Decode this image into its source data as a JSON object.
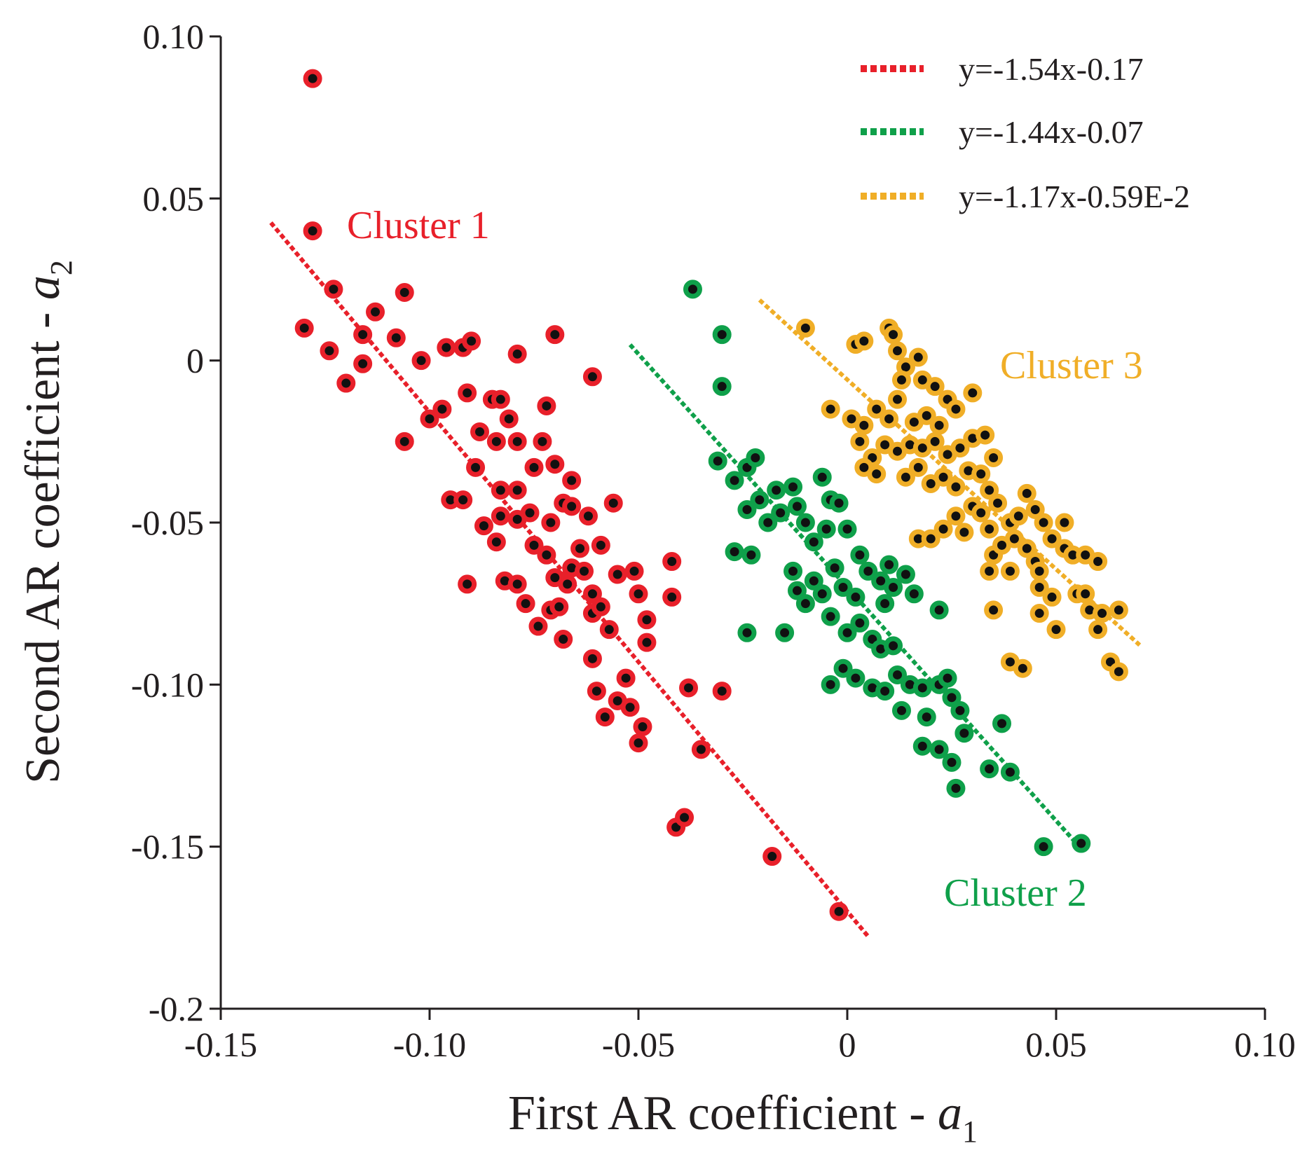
{
  "chart_data": {
    "type": "scatter",
    "title": "",
    "xlabel": "First AR coefficient - ",
    "xlabel_var": "a",
    "xlabel_sub": "1",
    "ylabel": "Second AR coefficient - ",
    "ylabel_var": "a",
    "ylabel_sub": "2",
    "xlim": [
      -0.15,
      0.1
    ],
    "ylim": [
      -0.2,
      0.1
    ],
    "xticks": [
      -0.15,
      -0.1,
      -0.05,
      0,
      0.05,
      0.1
    ],
    "xtick_labels": [
      "-0.15",
      "-0.10",
      "-0.05",
      "0",
      "0.05",
      "0.10"
    ],
    "yticks": [
      -0.2,
      -0.15,
      -0.1,
      -0.05,
      0,
      0.05,
      0.1
    ],
    "ytick_labels": [
      "-0.2",
      "-0.15",
      "-0.10",
      "-0.05",
      "0",
      "0.05",
      "0.10"
    ],
    "grid": false,
    "legend_position": "top-right",
    "series": [
      {
        "name": "Cluster 1",
        "color": "#e8202a",
        "label_color": "#e8202a",
        "fit_label": "y=-1.54x-0.17",
        "fit": {
          "slope": -1.54,
          "intercept": -0.17,
          "x_range": [
            -0.138,
            0.005
          ]
        },
        "points": [
          [
            -0.128,
            0.087
          ],
          [
            -0.128,
            0.04
          ],
          [
            -0.123,
            0.022
          ],
          [
            -0.13,
            0.01
          ],
          [
            -0.124,
            0.003
          ],
          [
            -0.12,
            -0.007
          ],
          [
            -0.116,
            0.008
          ],
          [
            -0.113,
            0.015
          ],
          [
            -0.116,
            -0.001
          ],
          [
            -0.108,
            0.007
          ],
          [
            -0.106,
            0.021
          ],
          [
            -0.102,
            0.0
          ],
          [
            -0.106,
            -0.025
          ],
          [
            -0.1,
            -0.018
          ],
          [
            -0.097,
            -0.015
          ],
          [
            -0.096,
            0.004
          ],
          [
            -0.092,
            0.004
          ],
          [
            -0.09,
            0.006
          ],
          [
            -0.079,
            0.002
          ],
          [
            -0.07,
            0.008
          ],
          [
            -0.061,
            -0.005
          ],
          [
            -0.091,
            -0.01
          ],
          [
            -0.085,
            -0.012
          ],
          [
            -0.083,
            -0.012
          ],
          [
            -0.081,
            -0.018
          ],
          [
            -0.088,
            -0.022
          ],
          [
            -0.084,
            -0.025
          ],
          [
            -0.079,
            -0.025
          ],
          [
            -0.073,
            -0.025
          ],
          [
            -0.072,
            -0.014
          ],
          [
            -0.089,
            -0.033
          ],
          [
            -0.075,
            -0.033
          ],
          [
            -0.07,
            -0.032
          ],
          [
            -0.083,
            -0.04
          ],
          [
            -0.079,
            -0.04
          ],
          [
            -0.076,
            -0.047
          ],
          [
            -0.068,
            -0.044
          ],
          [
            -0.066,
            -0.037
          ],
          [
            -0.066,
            -0.045
          ],
          [
            -0.062,
            -0.048
          ],
          [
            -0.056,
            -0.044
          ],
          [
            -0.095,
            -0.043
          ],
          [
            -0.092,
            -0.043
          ],
          [
            -0.087,
            -0.051
          ],
          [
            -0.084,
            -0.056
          ],
          [
            -0.083,
            -0.048
          ],
          [
            -0.079,
            -0.049
          ],
          [
            -0.075,
            -0.057
          ],
          [
            -0.071,
            -0.05
          ],
          [
            -0.072,
            -0.06
          ],
          [
            -0.064,
            -0.058
          ],
          [
            -0.059,
            -0.057
          ],
          [
            -0.091,
            -0.069
          ],
          [
            -0.082,
            -0.068
          ],
          [
            -0.079,
            -0.069
          ],
          [
            -0.077,
            -0.075
          ],
          [
            -0.074,
            -0.082
          ],
          [
            -0.071,
            -0.077
          ],
          [
            -0.069,
            -0.076
          ],
          [
            -0.07,
            -0.067
          ],
          [
            -0.067,
            -0.069
          ],
          [
            -0.066,
            -0.064
          ],
          [
            -0.063,
            -0.065
          ],
          [
            -0.061,
            -0.072
          ],
          [
            -0.061,
            -0.078
          ],
          [
            -0.059,
            -0.076
          ],
          [
            -0.057,
            -0.083
          ],
          [
            -0.055,
            -0.066
          ],
          [
            -0.051,
            -0.065
          ],
          [
            -0.05,
            -0.072
          ],
          [
            -0.048,
            -0.08
          ],
          [
            -0.048,
            -0.087
          ],
          [
            -0.042,
            -0.062
          ],
          [
            -0.042,
            -0.073
          ],
          [
            -0.068,
            -0.086
          ],
          [
            -0.061,
            -0.092
          ],
          [
            -0.06,
            -0.102
          ],
          [
            -0.058,
            -0.11
          ],
          [
            -0.055,
            -0.105
          ],
          [
            -0.053,
            -0.098
          ],
          [
            -0.052,
            -0.107
          ],
          [
            -0.05,
            -0.118
          ],
          [
            -0.049,
            -0.113
          ],
          [
            -0.038,
            -0.101
          ],
          [
            -0.03,
            -0.102
          ],
          [
            -0.035,
            -0.12
          ],
          [
            -0.041,
            -0.144
          ],
          [
            -0.039,
            -0.141
          ],
          [
            -0.018,
            -0.153
          ],
          [
            -0.002,
            -0.17
          ]
        ]
      },
      {
        "name": "Cluster 2",
        "color": "#0fa04a",
        "label_color": "#0fa04a",
        "fit_label": "y=-1.44x-0.07",
        "fit": {
          "slope": -1.44,
          "intercept": -0.07,
          "x_range": [
            -0.052,
            0.056
          ]
        },
        "points": [
          [
            -0.037,
            0.022
          ],
          [
            -0.03,
            0.008
          ],
          [
            -0.03,
            -0.008
          ],
          [
            -0.031,
            -0.031
          ],
          [
            -0.024,
            -0.033
          ],
          [
            -0.022,
            -0.03
          ],
          [
            -0.027,
            -0.037
          ],
          [
            -0.024,
            -0.046
          ],
          [
            -0.021,
            -0.043
          ],
          [
            -0.017,
            -0.04
          ],
          [
            -0.013,
            -0.039
          ],
          [
            -0.019,
            -0.05
          ],
          [
            -0.016,
            -0.047
          ],
          [
            -0.012,
            -0.045
          ],
          [
            -0.01,
            -0.05
          ],
          [
            -0.006,
            -0.036
          ],
          [
            -0.004,
            -0.043
          ],
          [
            -0.002,
            -0.044
          ],
          [
            -0.005,
            -0.052
          ],
          [
            -0.008,
            -0.056
          ],
          [
            0.0,
            -0.052
          ],
          [
            -0.027,
            -0.059
          ],
          [
            -0.023,
            -0.06
          ],
          [
            -0.024,
            -0.084
          ],
          [
            -0.015,
            -0.084
          ],
          [
            -0.013,
            -0.065
          ],
          [
            -0.012,
            -0.071
          ],
          [
            -0.01,
            -0.075
          ],
          [
            -0.008,
            -0.068
          ],
          [
            -0.006,
            -0.072
          ],
          [
            -0.003,
            -0.064
          ],
          [
            -0.001,
            -0.07
          ],
          [
            0.002,
            -0.073
          ],
          [
            0.003,
            -0.06
          ],
          [
            0.005,
            -0.065
          ],
          [
            0.008,
            -0.068
          ],
          [
            0.01,
            -0.063
          ],
          [
            0.011,
            -0.07
          ],
          [
            0.014,
            -0.066
          ],
          [
            0.009,
            -0.075
          ],
          [
            0.016,
            -0.072
          ],
          [
            0.022,
            -0.077
          ],
          [
            -0.004,
            -0.079
          ],
          [
            0.0,
            -0.084
          ],
          [
            0.003,
            -0.081
          ],
          [
            0.006,
            -0.086
          ],
          [
            0.008,
            -0.089
          ],
          [
            0.011,
            -0.088
          ],
          [
            -0.004,
            -0.1
          ],
          [
            -0.001,
            -0.095
          ],
          [
            0.002,
            -0.098
          ],
          [
            0.006,
            -0.101
          ],
          [
            0.009,
            -0.102
          ],
          [
            0.012,
            -0.097
          ],
          [
            0.015,
            -0.1
          ],
          [
            0.013,
            -0.108
          ],
          [
            0.018,
            -0.101
          ],
          [
            0.019,
            -0.11
          ],
          [
            0.022,
            -0.1
          ],
          [
            0.024,
            -0.098
          ],
          [
            0.025,
            -0.104
          ],
          [
            0.027,
            -0.108
          ],
          [
            0.018,
            -0.119
          ],
          [
            0.022,
            -0.12
          ],
          [
            0.025,
            -0.124
          ],
          [
            0.028,
            -0.115
          ],
          [
            0.026,
            -0.132
          ],
          [
            0.034,
            -0.126
          ],
          [
            0.037,
            -0.112
          ],
          [
            0.039,
            -0.127
          ],
          [
            0.047,
            -0.15
          ],
          [
            0.056,
            -0.149
          ]
        ]
      },
      {
        "name": "Cluster 3",
        "color": "#f0ae27",
        "label_color": "#f0ae27",
        "fit_label": "y=-1.17x-0.59E-2",
        "fit": {
          "slope": -1.17,
          "intercept": -0.0059,
          "x_range": [
            -0.021,
            0.07
          ]
        },
        "points": [
          [
            -0.01,
            0.01
          ],
          [
            0.002,
            0.005
          ],
          [
            0.004,
            0.006
          ],
          [
            0.01,
            0.01
          ],
          [
            0.011,
            0.008
          ],
          [
            0.012,
            0.003
          ],
          [
            0.014,
            -0.002
          ],
          [
            0.017,
            0.001
          ],
          [
            0.013,
            -0.006
          ],
          [
            0.018,
            -0.006
          ],
          [
            0.021,
            -0.008
          ],
          [
            -0.004,
            -0.015
          ],
          [
            0.001,
            -0.018
          ],
          [
            0.004,
            -0.02
          ],
          [
            0.007,
            -0.015
          ],
          [
            0.01,
            -0.018
          ],
          [
            0.012,
            -0.012
          ],
          [
            0.016,
            -0.019
          ],
          [
            0.019,
            -0.017
          ],
          [
            0.022,
            -0.02
          ],
          [
            0.024,
            -0.012
          ],
          [
            0.026,
            -0.015
          ],
          [
            0.03,
            -0.01
          ],
          [
            0.003,
            -0.025
          ],
          [
            0.006,
            -0.03
          ],
          [
            0.009,
            -0.026
          ],
          [
            0.012,
            -0.028
          ],
          [
            0.015,
            -0.026
          ],
          [
            0.018,
            -0.027
          ],
          [
            0.021,
            -0.025
          ],
          [
            0.024,
            -0.029
          ],
          [
            0.027,
            -0.027
          ],
          [
            0.03,
            -0.024
          ],
          [
            0.033,
            -0.023
          ],
          [
            0.035,
            -0.03
          ],
          [
            0.004,
            -0.033
          ],
          [
            0.007,
            -0.035
          ],
          [
            0.014,
            -0.036
          ],
          [
            0.017,
            -0.033
          ],
          [
            0.02,
            -0.038
          ],
          [
            0.023,
            -0.036
          ],
          [
            0.026,
            -0.039
          ],
          [
            0.029,
            -0.034
          ],
          [
            0.032,
            -0.035
          ],
          [
            0.034,
            -0.04
          ],
          [
            0.017,
            -0.055
          ],
          [
            0.02,
            -0.055
          ],
          [
            0.023,
            -0.052
          ],
          [
            0.026,
            -0.048
          ],
          [
            0.028,
            -0.053
          ],
          [
            0.03,
            -0.045
          ],
          [
            0.032,
            -0.047
          ],
          [
            0.034,
            -0.052
          ],
          [
            0.036,
            -0.044
          ],
          [
            0.039,
            -0.05
          ],
          [
            0.041,
            -0.048
          ],
          [
            0.043,
            -0.041
          ],
          [
            0.045,
            -0.046
          ],
          [
            0.047,
            -0.05
          ],
          [
            0.049,
            -0.055
          ],
          [
            0.052,
            -0.05
          ],
          [
            0.035,
            -0.06
          ],
          [
            0.037,
            -0.057
          ],
          [
            0.04,
            -0.055
          ],
          [
            0.043,
            -0.058
          ],
          [
            0.045,
            -0.062
          ],
          [
            0.046,
            -0.065
          ],
          [
            0.052,
            -0.058
          ],
          [
            0.054,
            -0.06
          ],
          [
            0.057,
            -0.06
          ],
          [
            0.06,
            -0.062
          ],
          [
            0.034,
            -0.065
          ],
          [
            0.039,
            -0.065
          ],
          [
            0.046,
            -0.07
          ],
          [
            0.049,
            -0.073
          ],
          [
            0.046,
            -0.078
          ],
          [
            0.035,
            -0.077
          ],
          [
            0.055,
            -0.072
          ],
          [
            0.057,
            -0.072
          ],
          [
            0.058,
            -0.077
          ],
          [
            0.061,
            -0.078
          ],
          [
            0.065,
            -0.077
          ],
          [
            0.05,
            -0.083
          ],
          [
            0.06,
            -0.083
          ],
          [
            0.039,
            -0.093
          ],
          [
            0.042,
            -0.095
          ],
          [
            0.063,
            -0.093
          ],
          [
            0.065,
            -0.096
          ]
        ]
      }
    ]
  }
}
